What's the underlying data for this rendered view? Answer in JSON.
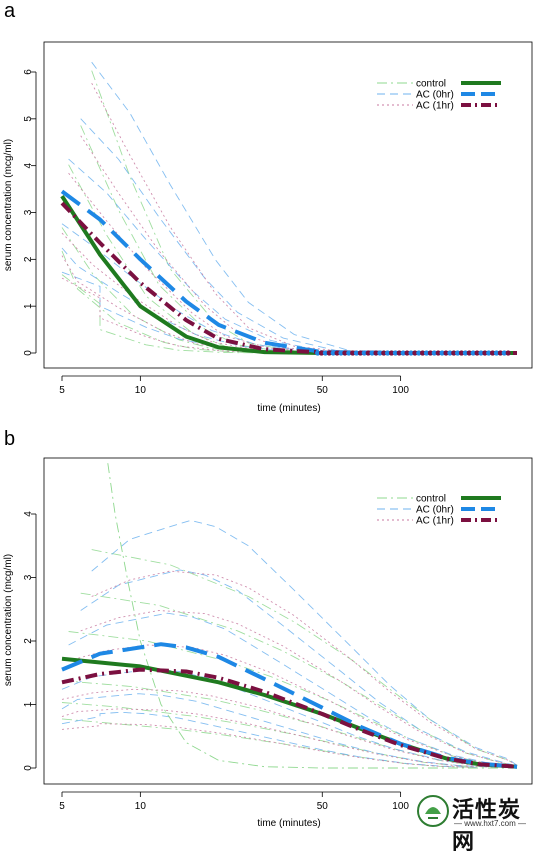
{
  "chart_data": [
    {
      "panel_label": "a",
      "type": "line",
      "xlabel": "time (minutes)",
      "ylabel": "serum concentration (mcg/ml)",
      "x_scale": "log",
      "xlim": [
        5,
        280
      ],
      "ylim": [
        0,
        6.5
      ],
      "x_ticks": [
        5,
        10,
        50,
        100
      ],
      "y_ticks": [
        0,
        1,
        2,
        3,
        4,
        5,
        6
      ],
      "legend": [
        "control",
        "AC (0hr)",
        "AC (1hr)"
      ],
      "legend_position": "top-right",
      "series": [
        {
          "name": "control",
          "color": "#1f7a1f",
          "style": "solid",
          "x": [
            5,
            7,
            10,
            15,
            20,
            30,
            50,
            100,
            200,
            280
          ],
          "y": [
            3.35,
            2.1,
            1.0,
            0.35,
            0.12,
            0.02,
            0,
            0,
            0,
            0
          ]
        },
        {
          "name": "AC (0hr)",
          "color": "#1e88e5",
          "style": "dashed",
          "x": [
            5,
            7,
            10,
            15,
            20,
            30,
            50,
            100,
            200,
            280
          ],
          "y": [
            3.45,
            2.85,
            2.0,
            1.1,
            0.6,
            0.22,
            0.02,
            0,
            0,
            0
          ]
        },
        {
          "name": "AC (1hr)",
          "color": "#7b1040",
          "style": "dotdash",
          "x": [
            5,
            7,
            10,
            15,
            20,
            30,
            50,
            100,
            200,
            280
          ],
          "y": [
            3.2,
            2.35,
            1.5,
            0.7,
            0.3,
            0.08,
            0.01,
            0,
            0,
            0
          ]
        }
      ]
    },
    {
      "panel_label": "b",
      "type": "line",
      "xlabel": "time (minutes)",
      "ylabel": "serum concentration (mcg/ml)",
      "x_scale": "log",
      "xlim": [
        5,
        280
      ],
      "ylim": [
        0,
        4.8
      ],
      "x_ticks": [
        5,
        10,
        50,
        100
      ],
      "y_ticks": [
        0,
        1,
        2,
        3,
        4
      ],
      "legend": [
        "control",
        "AC (0hr)",
        "AC (1hr)"
      ],
      "legend_position": "top-right",
      "series": [
        {
          "name": "control",
          "color": "#1f7a1f",
          "style": "solid",
          "x": [
            5,
            10,
            20,
            30,
            50,
            70,
            100,
            150,
            200,
            280
          ],
          "y": [
            1.72,
            1.6,
            1.35,
            1.15,
            0.85,
            0.62,
            0.38,
            0.15,
            0.06,
            0.02
          ]
        },
        {
          "name": "AC (0hr)",
          "color": "#1e88e5",
          "style": "dashed",
          "x": [
            5,
            7,
            10,
            12,
            15,
            20,
            30,
            50,
            70,
            100,
            150,
            200,
            280
          ],
          "y": [
            1.55,
            1.8,
            1.9,
            1.95,
            1.9,
            1.75,
            1.4,
            0.95,
            0.65,
            0.38,
            0.16,
            0.07,
            0.02
          ]
        },
        {
          "name": "AC (1hr)",
          "color": "#7b1040",
          "style": "dotdash",
          "x": [
            5,
            7,
            10,
            15,
            20,
            30,
            50,
            70,
            100,
            150,
            200,
            280
          ],
          "y": [
            1.35,
            1.48,
            1.55,
            1.52,
            1.42,
            1.2,
            0.85,
            0.6,
            0.36,
            0.15,
            0.06,
            0.02
          ]
        }
      ]
    }
  ],
  "watermark": {
    "title": "活性炭网",
    "url": "— www.hxt7.com —"
  }
}
